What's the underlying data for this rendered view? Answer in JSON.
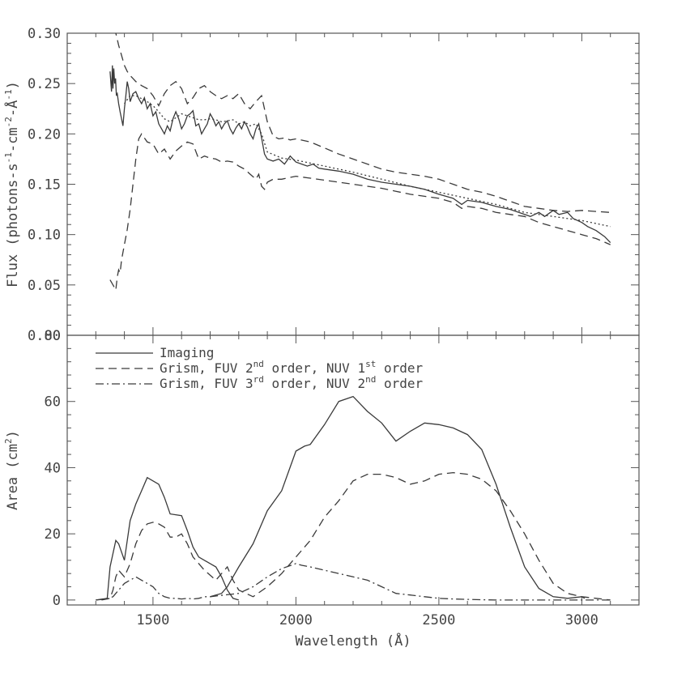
{
  "chart_data": [
    {
      "type": "line",
      "panel": "top",
      "ylabel": {
        "parts": [
          {
            "t": "Flux (photons-s"
          },
          {
            "t": "-1",
            "sup": true
          },
          {
            "t": "-cm"
          },
          {
            "t": "-2",
            "sup": true
          },
          {
            "t": "-Å"
          },
          {
            "t": "-1",
            "sup": true
          },
          {
            "t": ")"
          }
        ]
      },
      "ylim": [
        0,
        0.3
      ],
      "xlim": [
        1200,
        3200
      ],
      "yticks": [
        "0.00",
        "0.05",
        "0.10",
        "0.15",
        "0.20",
        "0.25",
        "0.30"
      ],
      "ytick_values": [
        0,
        0.05,
        0.1,
        0.15,
        0.2,
        0.25,
        0.3
      ],
      "series": [
        {
          "style": "solid",
          "x": [
            1350,
            1355,
            1358,
            1360,
            1363,
            1366,
            1369,
            1372,
            1375,
            1380,
            1385,
            1390,
            1395,
            1400,
            1405,
            1410,
            1415,
            1420,
            1430,
            1440,
            1450,
            1460,
            1470,
            1480,
            1490,
            1500,
            1510,
            1520,
            1530,
            1540,
            1550,
            1560,
            1570,
            1580,
            1590,
            1600,
            1610,
            1620,
            1630,
            1640,
            1650,
            1660,
            1670,
            1680,
            1690,
            1700,
            1710,
            1720,
            1730,
            1740,
            1750,
            1760,
            1770,
            1780,
            1790,
            1800,
            1810,
            1820,
            1830,
            1840,
            1850,
            1860,
            1870,
            1880,
            1890,
            1900,
            1920,
            1940,
            1960,
            1980,
            2000,
            2020,
            2040,
            2060,
            2080,
            2100,
            2150,
            2200,
            2250,
            2300,
            2350,
            2400,
            2450,
            2500,
            2550,
            2580,
            2600,
            2650,
            2700,
            2750,
            2800,
            2820,
            2850,
            2870,
            2900,
            2920,
            2950,
            2970,
            3000,
            3020,
            3050,
            3080,
            3100
          ],
          "y": [
            0.262,
            0.242,
            0.268,
            0.245,
            0.265,
            0.25,
            0.255,
            0.238,
            0.24,
            0.23,
            0.222,
            0.215,
            0.208,
            0.225,
            0.238,
            0.252,
            0.245,
            0.232,
            0.24,
            0.242,
            0.235,
            0.23,
            0.236,
            0.225,
            0.23,
            0.218,
            0.222,
            0.21,
            0.205,
            0.2,
            0.208,
            0.203,
            0.215,
            0.222,
            0.215,
            0.205,
            0.21,
            0.218,
            0.22,
            0.223,
            0.208,
            0.21,
            0.2,
            0.205,
            0.21,
            0.22,
            0.215,
            0.208,
            0.212,
            0.205,
            0.21,
            0.213,
            0.205,
            0.2,
            0.206,
            0.21,
            0.205,
            0.212,
            0.207,
            0.2,
            0.195,
            0.205,
            0.21,
            0.196,
            0.18,
            0.175,
            0.173,
            0.175,
            0.17,
            0.178,
            0.172,
            0.17,
            0.168,
            0.17,
            0.166,
            0.165,
            0.163,
            0.16,
            0.155,
            0.152,
            0.15,
            0.148,
            0.145,
            0.14,
            0.136,
            0.13,
            0.134,
            0.132,
            0.128,
            0.125,
            0.12,
            0.118,
            0.122,
            0.118,
            0.124,
            0.12,
            0.122,
            0.116,
            0.112,
            0.108,
            0.104,
            0.098,
            0.092
          ]
        },
        {
          "style": "dashed",
          "x": [
            1360,
            1370,
            1380,
            1390,
            1400,
            1410,
            1420,
            1430,
            1440,
            1460,
            1480,
            1500,
            1520,
            1540,
            1560,
            1580,
            1600,
            1620,
            1640,
            1660,
            1680,
            1700,
            1720,
            1740,
            1760,
            1780,
            1800,
            1820,
            1840,
            1860,
            1880,
            1900,
            1920,
            1940,
            1960,
            1980,
            2000,
            2050,
            2100,
            2150,
            2200,
            2250,
            2300,
            2350,
            2400,
            2450,
            2500,
            2550,
            2600,
            2650,
            2700,
            2750,
            2800,
            2850,
            2900,
            2950,
            3000,
            3050,
            3100
          ],
          "y": [
            0.305,
            0.3,
            0.288,
            0.278,
            0.268,
            0.262,
            0.258,
            0.255,
            0.252,
            0.248,
            0.245,
            0.238,
            0.228,
            0.24,
            0.248,
            0.252,
            0.245,
            0.23,
            0.236,
            0.245,
            0.248,
            0.242,
            0.238,
            0.235,
            0.238,
            0.235,
            0.24,
            0.23,
            0.225,
            0.232,
            0.238,
            0.212,
            0.198,
            0.195,
            0.196,
            0.194,
            0.195,
            0.192,
            0.186,
            0.18,
            0.175,
            0.17,
            0.165,
            0.162,
            0.16,
            0.158,
            0.155,
            0.15,
            0.145,
            0.142,
            0.138,
            0.133,
            0.128,
            0.126,
            0.124,
            0.123,
            0.124,
            0.123,
            0.122
          ]
        },
        {
          "style": "dashed",
          "x": [
            1350,
            1360,
            1370,
            1375,
            1380,
            1385,
            1390,
            1400,
            1410,
            1420,
            1430,
            1440,
            1450,
            1460,
            1480,
            1500,
            1520,
            1540,
            1560,
            1580,
            1600,
            1620,
            1640,
            1660,
            1680,
            1700,
            1720,
            1740,
            1760,
            1780,
            1800,
            1820,
            1840,
            1860,
            1870,
            1880,
            1890,
            1900,
            1920,
            1950,
            2000,
            2050,
            2100,
            2150,
            2200,
            2250,
            2300,
            2350,
            2400,
            2450,
            2500,
            2550,
            2580,
            2600,
            2650,
            2700,
            2750,
            2800,
            2850,
            2900,
            2950,
            3000,
            3050,
            3100
          ],
          "y": [
            0.055,
            0.05,
            0.045,
            0.058,
            0.065,
            0.062,
            0.075,
            0.09,
            0.105,
            0.125,
            0.15,
            0.175,
            0.195,
            0.2,
            0.192,
            0.19,
            0.18,
            0.185,
            0.175,
            0.183,
            0.188,
            0.192,
            0.19,
            0.175,
            0.178,
            0.176,
            0.175,
            0.172,
            0.173,
            0.172,
            0.168,
            0.165,
            0.16,
            0.155,
            0.16,
            0.148,
            0.145,
            0.152,
            0.155,
            0.155,
            0.158,
            0.156,
            0.154,
            0.152,
            0.15,
            0.148,
            0.146,
            0.143,
            0.14,
            0.138,
            0.136,
            0.132,
            0.126,
            0.128,
            0.126,
            0.122,
            0.12,
            0.118,
            0.112,
            0.108,
            0.104,
            0.1,
            0.096,
            0.09
          ]
        },
        {
          "style": "dotted",
          "x": [
            1400,
            1420,
            1440,
            1460,
            1480,
            1500,
            1520,
            1540,
            1560,
            1580,
            1600,
            1620,
            1640,
            1660,
            1680,
            1700,
            1720,
            1740,
            1760,
            1780,
            1800,
            1820,
            1840,
            1860,
            1880,
            1900,
            1950,
            2000,
            2100,
            2200,
            2300,
            2400,
            2500,
            2600,
            2700,
            2800,
            2900,
            3000,
            3100
          ],
          "y": [
            0.23,
            0.238,
            0.238,
            0.235,
            0.232,
            0.228,
            0.222,
            0.215,
            0.212,
            0.216,
            0.22,
            0.218,
            0.216,
            0.214,
            0.214,
            0.215,
            0.214,
            0.212,
            0.213,
            0.214,
            0.21,
            0.212,
            0.208,
            0.21,
            0.2,
            0.182,
            0.176,
            0.174,
            0.168,
            0.162,
            0.155,
            0.148,
            0.142,
            0.136,
            0.13,
            0.122,
            0.118,
            0.114,
            0.108
          ]
        }
      ]
    },
    {
      "type": "line",
      "panel": "bottom",
      "xlabel": "Wavelength (Å)",
      "ylabel": {
        "parts": [
          {
            "t": "Area (cm"
          },
          {
            "t": "2",
            "sup": true
          },
          {
            "t": ")"
          }
        ]
      },
      "xlim": [
        1200,
        3200
      ],
      "ylim": [
        -1.5,
        80
      ],
      "xticks": [
        "1500",
        "2000",
        "2500",
        "3000"
      ],
      "xtick_values": [
        1500,
        2000,
        2500,
        3000
      ],
      "yticks": [
        "0",
        "20",
        "40",
        "60",
        "80"
      ],
      "ytick_values": [
        0,
        20,
        40,
        60,
        80
      ],
      "series": [
        {
          "style": "solid",
          "x": [
            1300,
            1340,
            1350,
            1370,
            1380,
            1400,
            1420,
            1440,
            1460,
            1480,
            1500,
            1520,
            1540,
            1560,
            1600,
            1620,
            1640,
            1660,
            1700,
            1720,
            1740,
            1760,
            1780,
            1800
          ],
          "y": [
            0,
            0.5,
            10,
            18,
            17,
            12,
            24,
            29,
            33,
            37,
            36,
            35,
            31,
            26,
            25.5,
            21,
            16,
            13,
            11,
            10,
            7,
            3,
            0.5,
            0
          ]
        },
        {
          "style": "solid",
          "x": [
            1700,
            1720,
            1740,
            1760,
            1780,
            1800,
            1850,
            1900,
            1950,
            2000,
            2030,
            2050,
            2100,
            2150,
            2200,
            2250,
            2300,
            2350,
            2400,
            2450,
            2500,
            2550,
            2600,
            2650,
            2700,
            2750,
            2800,
            2850,
            2900,
            2950,
            3000,
            3010
          ],
          "y": [
            1,
            1.5,
            2,
            4,
            7,
            10,
            17,
            27,
            33,
            45,
            46.5,
            47,
            53,
            60,
            61.5,
            57,
            53.5,
            48,
            51,
            53.5,
            53,
            52,
            50,
            45.5,
            35,
            22,
            10,
            3.5,
            1,
            0.5,
            1,
            0.5
          ]
        },
        {
          "style": "dashed",
          "x": [
            1320,
            1350,
            1360,
            1370,
            1380,
            1400,
            1420,
            1440,
            1460,
            1480,
            1500,
            1520,
            1540,
            1560,
            1580,
            1600,
            1620,
            1640,
            1660,
            1680,
            1700,
            1720,
            1740,
            1760,
            1780,
            1800,
            1850,
            1900,
            1950,
            2000,
            2050,
            2100,
            2150,
            2200,
            2250,
            2300,
            2350,
            2400,
            2450,
            2500,
            2550,
            2600,
            2650,
            2700,
            2750,
            2800,
            2850,
            2900,
            2950,
            3000,
            3050,
            3100
          ],
          "y": [
            0,
            0.5,
            3,
            7,
            9,
            7,
            11,
            17,
            21,
            23,
            23.5,
            23,
            22,
            19,
            19,
            20,
            17,
            13,
            11,
            9,
            7.5,
            6,
            8,
            10,
            6,
            3,
            1,
            4,
            8,
            13,
            18,
            25,
            30,
            36,
            38,
            38,
            37,
            35,
            36,
            38,
            38.5,
            38,
            36.5,
            33,
            27,
            20,
            12,
            5,
            2,
            1,
            0.5,
            0
          ]
        },
        {
          "style": "dashdot",
          "x": [
            1300,
            1340,
            1360,
            1380,
            1400,
            1440,
            1460,
            1480,
            1500,
            1520,
            1540,
            1560,
            1580,
            1600,
            1620,
            1640,
            1660,
            1680,
            1700,
            1750,
            1800,
            1850,
            1900,
            1950,
            2000,
            2020,
            2050,
            2100,
            2150,
            2200,
            2250,
            2300,
            2350,
            2400,
            2450,
            2500,
            2550,
            2600,
            2650,
            2700,
            2750,
            2800,
            2850,
            2900,
            2950,
            3000,
            3050,
            3100
          ],
          "y": [
            0,
            0.3,
            1,
            3,
            5,
            7,
            6,
            5,
            4,
            2,
            1,
            0.5,
            0.5,
            0.3,
            0.5,
            0.3,
            0.5,
            1,
            1,
            1.5,
            2,
            4,
            7,
            9.5,
            11,
            10.5,
            10,
            9,
            8,
            7,
            6,
            4,
            2,
            1.5,
            1,
            0.5,
            0.3,
            0.2,
            0.1,
            0,
            0,
            0,
            0,
            0,
            0,
            0,
            0,
            0
          ]
        }
      ],
      "legend": {
        "placement": "top-left",
        "entries": [
          {
            "style": "solid",
            "parts": [
              {
                "t": "Imaging"
              }
            ]
          },
          {
            "style": "dashed",
            "parts": [
              {
                "t": "Grism, FUV 2"
              },
              {
                "t": "nd",
                "sup": true
              },
              {
                "t": " order, NUV 1"
              },
              {
                "t": "st",
                "sup": true
              },
              {
                "t": " order"
              }
            ]
          },
          {
            "style": "dashdot",
            "parts": [
              {
                "t": "Grism, FUV 3"
              },
              {
                "t": "rd",
                "sup": true
              },
              {
                "t": " order, NUV 2"
              },
              {
                "t": "nd",
                "sup": true
              },
              {
                "t": " order"
              }
            ]
          }
        ]
      }
    }
  ]
}
